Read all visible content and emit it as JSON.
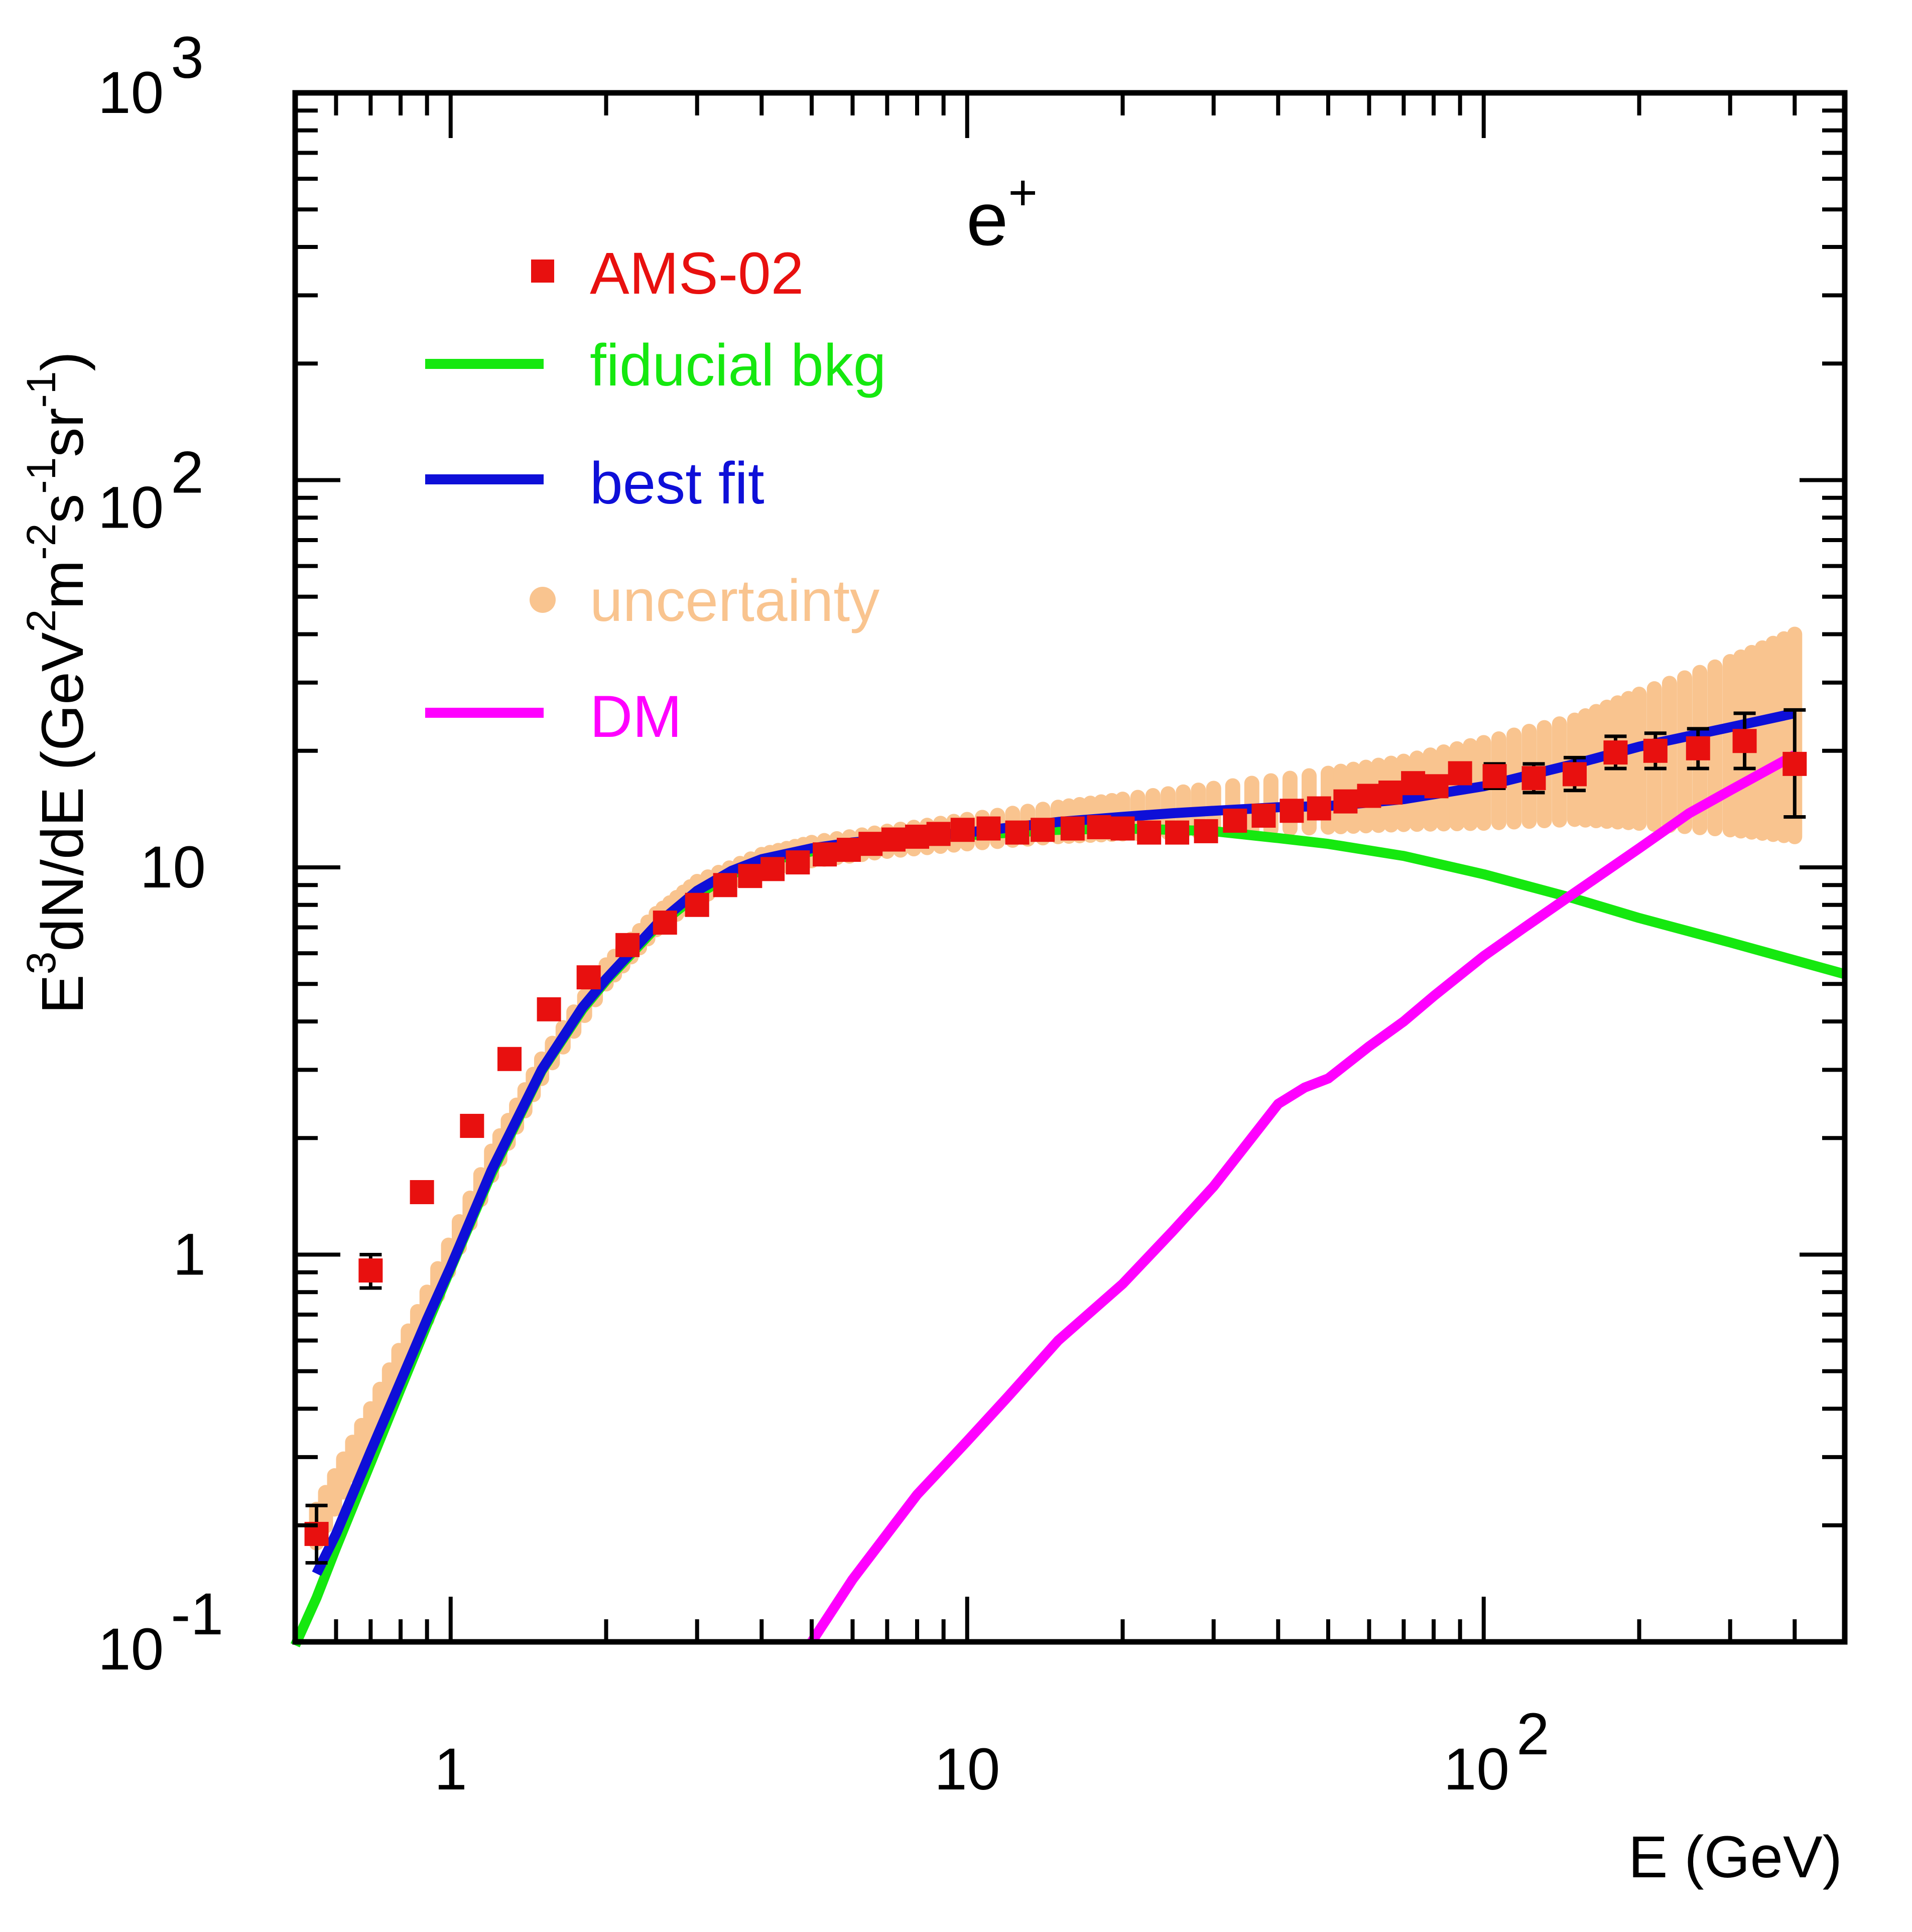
{
  "chart_data": {
    "type": "line",
    "title": "",
    "annotation": {
      "base": "e",
      "sup": "+"
    },
    "xlabel": "E (GeV)",
    "ylabel": {
      "parts": [
        {
          "t": "E",
          "sup": false
        },
        {
          "t": "3",
          "sup": true
        },
        {
          "t": "dN/dE (GeV",
          "sup": false
        },
        {
          "t": "2",
          "sup": true
        },
        {
          "t": "m",
          "sup": false
        },
        {
          "t": "-2",
          "sup": true
        },
        {
          "t": "s",
          "sup": false
        },
        {
          "t": "-1",
          "sup": true
        },
        {
          "t": "sr",
          "sup": false
        },
        {
          "t": "-1",
          "sup": true
        },
        {
          "t": ")",
          "sup": false
        }
      ]
    },
    "xscale": "log",
    "yscale": "log",
    "xlim": [
      0.5,
      500
    ],
    "ylim": [
      0.1,
      1000
    ],
    "x_ticklabels": [
      {
        "value": 1,
        "base": "1",
        "exp": ""
      },
      {
        "value": 10,
        "base": "10",
        "exp": ""
      },
      {
        "value": 100,
        "base": "10",
        "exp": "2"
      }
    ],
    "y_ticklabels": [
      {
        "value": 0.1,
        "base": "10",
        "exp": "-1"
      },
      {
        "value": 1,
        "base": "1",
        "exp": ""
      },
      {
        "value": 10,
        "base": "10",
        "exp": ""
      },
      {
        "value": 100,
        "base": "10",
        "exp": "2"
      },
      {
        "value": 1000,
        "base": "10",
        "exp": "3"
      }
    ],
    "legend": {
      "position": "top-left",
      "entries": [
        {
          "label": "AMS-02",
          "color": "#e8100f",
          "marker": "square"
        },
        {
          "label": "fiducial bkg",
          "color": "#15e80f",
          "marker": "line"
        },
        {
          "label": "best fit",
          "color": "#0e0fd8",
          "marker": "line"
        },
        {
          "label": "uncertainty",
          "color": "#f9c48f",
          "marker": "circle"
        },
        {
          "label": "DM",
          "color": "#ff00ff",
          "marker": "line"
        }
      ]
    },
    "ams02": {
      "name": "AMS-02",
      "color": "#e8100f",
      "points": [
        {
          "x": 0.55,
          "y": 0.19,
          "lo": 0.16,
          "hi": 0.225
        },
        {
          "x": 0.7,
          "y": 0.91,
          "lo": 0.82,
          "hi": 1.0
        },
        {
          "x": 0.88,
          "y": 1.45,
          "lo": 1.37,
          "hi": 1.53
        },
        {
          "x": 1.1,
          "y": 2.15
        },
        {
          "x": 1.3,
          "y": 3.2
        },
        {
          "x": 1.55,
          "y": 4.3
        },
        {
          "x": 1.85,
          "y": 5.2
        },
        {
          "x": 2.2,
          "y": 6.3
        },
        {
          "x": 2.6,
          "y": 7.2
        },
        {
          "x": 3.0,
          "y": 8.0
        },
        {
          "x": 3.4,
          "y": 9.0
        },
        {
          "x": 3.8,
          "y": 9.5
        },
        {
          "x": 4.2,
          "y": 9.9
        },
        {
          "x": 4.7,
          "y": 10.3
        },
        {
          "x": 5.3,
          "y": 10.8
        },
        {
          "x": 5.9,
          "y": 11.1
        },
        {
          "x": 6.5,
          "y": 11.5
        },
        {
          "x": 7.2,
          "y": 11.8
        },
        {
          "x": 8.0,
          "y": 12.0
        },
        {
          "x": 8.8,
          "y": 12.2
        },
        {
          "x": 9.8,
          "y": 12.5
        },
        {
          "x": 11,
          "y": 12.6
        },
        {
          "x": 12.5,
          "y": 12.3
        },
        {
          "x": 14,
          "y": 12.5
        },
        {
          "x": 16,
          "y": 12.6
        },
        {
          "x": 18,
          "y": 12.7
        },
        {
          "x": 20,
          "y": 12.6
        },
        {
          "x": 22.5,
          "y": 12.3
        },
        {
          "x": 25.5,
          "y": 12.3
        },
        {
          "x": 29,
          "y": 12.4
        },
        {
          "x": 33,
          "y": 13.2
        },
        {
          "x": 37.5,
          "y": 13.6
        },
        {
          "x": 42.5,
          "y": 14.0
        },
        {
          "x": 48,
          "y": 14.2
        },
        {
          "x": 54,
          "y": 14.8
        },
        {
          "x": 60,
          "y": 15.3
        },
        {
          "x": 66,
          "y": 15.6
        },
        {
          "x": 73,
          "y": 16.5
        },
        {
          "x": 81,
          "y": 16.2
        },
        {
          "x": 90,
          "y": 17.5
        },
        {
          "x": 105,
          "y": 17.2,
          "lo": 16.0,
          "hi": 18.5
        },
        {
          "x": 125,
          "y": 17.0,
          "lo": 15.6,
          "hi": 18.5
        },
        {
          "x": 150,
          "y": 17.4,
          "lo": 15.8,
          "hi": 19.2
        },
        {
          "x": 180,
          "y": 19.8,
          "lo": 18.0,
          "hi": 21.8
        },
        {
          "x": 215,
          "y": 20.0,
          "lo": 18.0,
          "hi": 22.2
        },
        {
          "x": 260,
          "y": 20.3,
          "lo": 18.0,
          "hi": 22.8
        },
        {
          "x": 320,
          "y": 21.2,
          "lo": 18.0,
          "hi": 25.0
        },
        {
          "x": 400,
          "y": 18.5,
          "lo": 13.5,
          "hi": 25.5
        }
      ]
    },
    "uncertainty_band": {
      "name": "uncertainty",
      "color": "#f9c48f",
      "points": [
        {
          "x": 0.55,
          "lo": 0.18,
          "hi": 0.22
        },
        {
          "x": 0.7,
          "lo": 0.33,
          "hi": 0.4
        },
        {
          "x": 0.9,
          "lo": 0.68,
          "hi": 0.8
        },
        {
          "x": 1.2,
          "lo": 1.6,
          "hi": 1.85
        },
        {
          "x": 1.5,
          "lo": 2.85,
          "hi": 3.2
        },
        {
          "x": 2.0,
          "lo": 5.0,
          "hi": 5.6
        },
        {
          "x": 2.5,
          "lo": 6.9,
          "hi": 7.6
        },
        {
          "x": 3.0,
          "lo": 8.3,
          "hi": 9.2
        },
        {
          "x": 4.0,
          "lo": 9.8,
          "hi": 10.8
        },
        {
          "x": 5.0,
          "lo": 10.4,
          "hi": 11.6
        },
        {
          "x": 7.0,
          "lo": 11.0,
          "hi": 12.4
        },
        {
          "x": 10,
          "lo": 11.5,
          "hi": 13.3
        },
        {
          "x": 15,
          "lo": 12.0,
          "hi": 14.3
        },
        {
          "x": 20,
          "lo": 12.2,
          "hi": 15.0
        },
        {
          "x": 30,
          "lo": 12.4,
          "hi": 16.0
        },
        {
          "x": 50,
          "lo": 12.7,
          "hi": 17.5
        },
        {
          "x": 70,
          "lo": 12.9,
          "hi": 18.8
        },
        {
          "x": 100,
          "lo": 13.0,
          "hi": 21.0
        },
        {
          "x": 150,
          "lo": 13.3,
          "hi": 24.0
        },
        {
          "x": 200,
          "lo": 13.0,
          "hi": 28.0
        },
        {
          "x": 300,
          "lo": 12.5,
          "hi": 34.0
        },
        {
          "x": 400,
          "lo": 12.0,
          "hi": 40.0
        }
      ]
    },
    "series": [
      {
        "name": "fiducial bkg",
        "color": "#15e80f",
        "x": [
          0.5,
          0.55,
          0.6,
          0.7,
          0.8,
          0.9,
          1.0,
          1.2,
          1.5,
          1.8,
          2.0,
          2.5,
          3.0,
          3.5,
          4.0,
          5.0,
          6.0,
          7.0,
          8.0,
          10,
          15,
          20,
          25,
          30,
          40,
          50,
          70,
          100,
          150,
          200,
          300,
          500
        ],
        "y": [
          0.098,
          0.13,
          0.175,
          0.29,
          0.45,
          0.66,
          0.92,
          1.62,
          2.98,
          4.3,
          5.1,
          7.0,
          8.5,
          9.6,
          10.3,
          11.0,
          11.4,
          11.6,
          11.8,
          12.1,
          12.5,
          12.6,
          12.5,
          12.4,
          11.9,
          11.5,
          10.7,
          9.6,
          8.3,
          7.4,
          6.4,
          5.3
        ]
      },
      {
        "name": "best fit",
        "color": "#0e0fd8",
        "x": [
          0.55,
          0.6,
          0.7,
          0.8,
          0.9,
          1.0,
          1.2,
          1.5,
          1.8,
          2.0,
          2.5,
          3.0,
          3.5,
          4.0,
          5.0,
          6.0,
          7.0,
          8.0,
          10,
          15,
          20,
          25,
          30,
          40,
          50,
          60,
          70,
          100,
          150,
          200,
          300,
          400
        ],
        "y": [
          0.15,
          0.19,
          0.31,
          0.47,
          0.68,
          0.93,
          1.65,
          3.0,
          4.35,
          5.15,
          7.1,
          8.7,
          9.8,
          10.5,
          11.2,
          11.6,
          11.8,
          12.0,
          12.3,
          13.1,
          13.5,
          13.8,
          14.0,
          14.3,
          14.4,
          14.7,
          15.0,
          16.2,
          18.5,
          20.5,
          23.0,
          25.0
        ]
      },
      {
        "name": "DM",
        "color": "#ff00ff",
        "x": [
          5,
          6,
          7,
          8,
          10,
          12,
          15,
          20,
          25,
          30,
          35,
          40,
          45,
          50,
          60,
          70,
          80,
          100,
          120,
          150,
          200,
          250,
          300,
          400
        ],
        "y": [
          0.1,
          0.145,
          0.19,
          0.24,
          0.33,
          0.43,
          0.6,
          0.84,
          1.15,
          1.5,
          1.95,
          2.45,
          2.7,
          2.85,
          3.45,
          4.0,
          4.65,
          5.9,
          7.0,
          8.6,
          11.2,
          13.8,
          15.8,
          19.5
        ]
      }
    ]
  }
}
